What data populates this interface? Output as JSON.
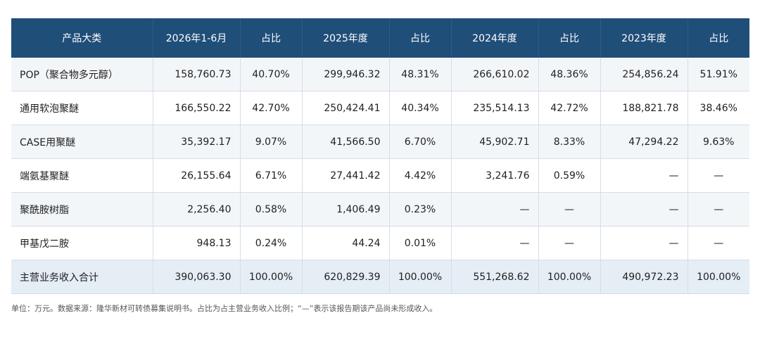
{
  "table": {
    "headers": [
      "产品大类",
      "2026年1-6月",
      "占比",
      "2025年度",
      "占比",
      "2024年度",
      "占比",
      "2023年度",
      "占比"
    ],
    "rows": [
      [
        "POP（聚合物多元醇）",
        "158,760.73",
        "40.70%",
        "299,946.32",
        "48.31%",
        "266,610.02",
        "48.36%",
        "254,856.24",
        "51.91%"
      ],
      [
        "通用软泡聚醚",
        "166,550.22",
        "42.70%",
        "250,424.41",
        "40.34%",
        "235,514.13",
        "42.72%",
        "188,821.78",
        "38.46%"
      ],
      [
        "CASE用聚醚",
        "35,392.17",
        "9.07%",
        "41,566.50",
        "6.70%",
        "45,902.71",
        "8.33%",
        "47,294.22",
        "9.63%"
      ],
      [
        "端氨基聚醚",
        "26,155.64",
        "6.71%",
        "27,441.42",
        "4.42%",
        "3,241.76",
        "0.59%",
        "—",
        "—"
      ],
      [
        "聚酰胺树脂",
        "2,256.40",
        "0.58%",
        "1,406.49",
        "0.23%",
        "—",
        "—",
        "—",
        "—"
      ],
      [
        "甲基戊二胺",
        "948.13",
        "0.24%",
        "44.24",
        "0.01%",
        "—",
        "—",
        "—",
        "—"
      ],
      [
        "主营业务收入合计",
        "390,063.30",
        "100.00%",
        "620,829.39",
        "100.00%",
        "551,268.62",
        "100.00%",
        "490,972.23",
        "100.00%"
      ]
    ]
  },
  "note": "单位：万元。数据来源：隆华新材可转债募集说明书。占比为占主营业务收入比例；“—”表示该报告期该产品尚未形成收入。",
  "colors": {
    "header_bg": "#1f4e79",
    "alt_row": "#f3f6f9",
    "total_row": "#e5edf5"
  }
}
